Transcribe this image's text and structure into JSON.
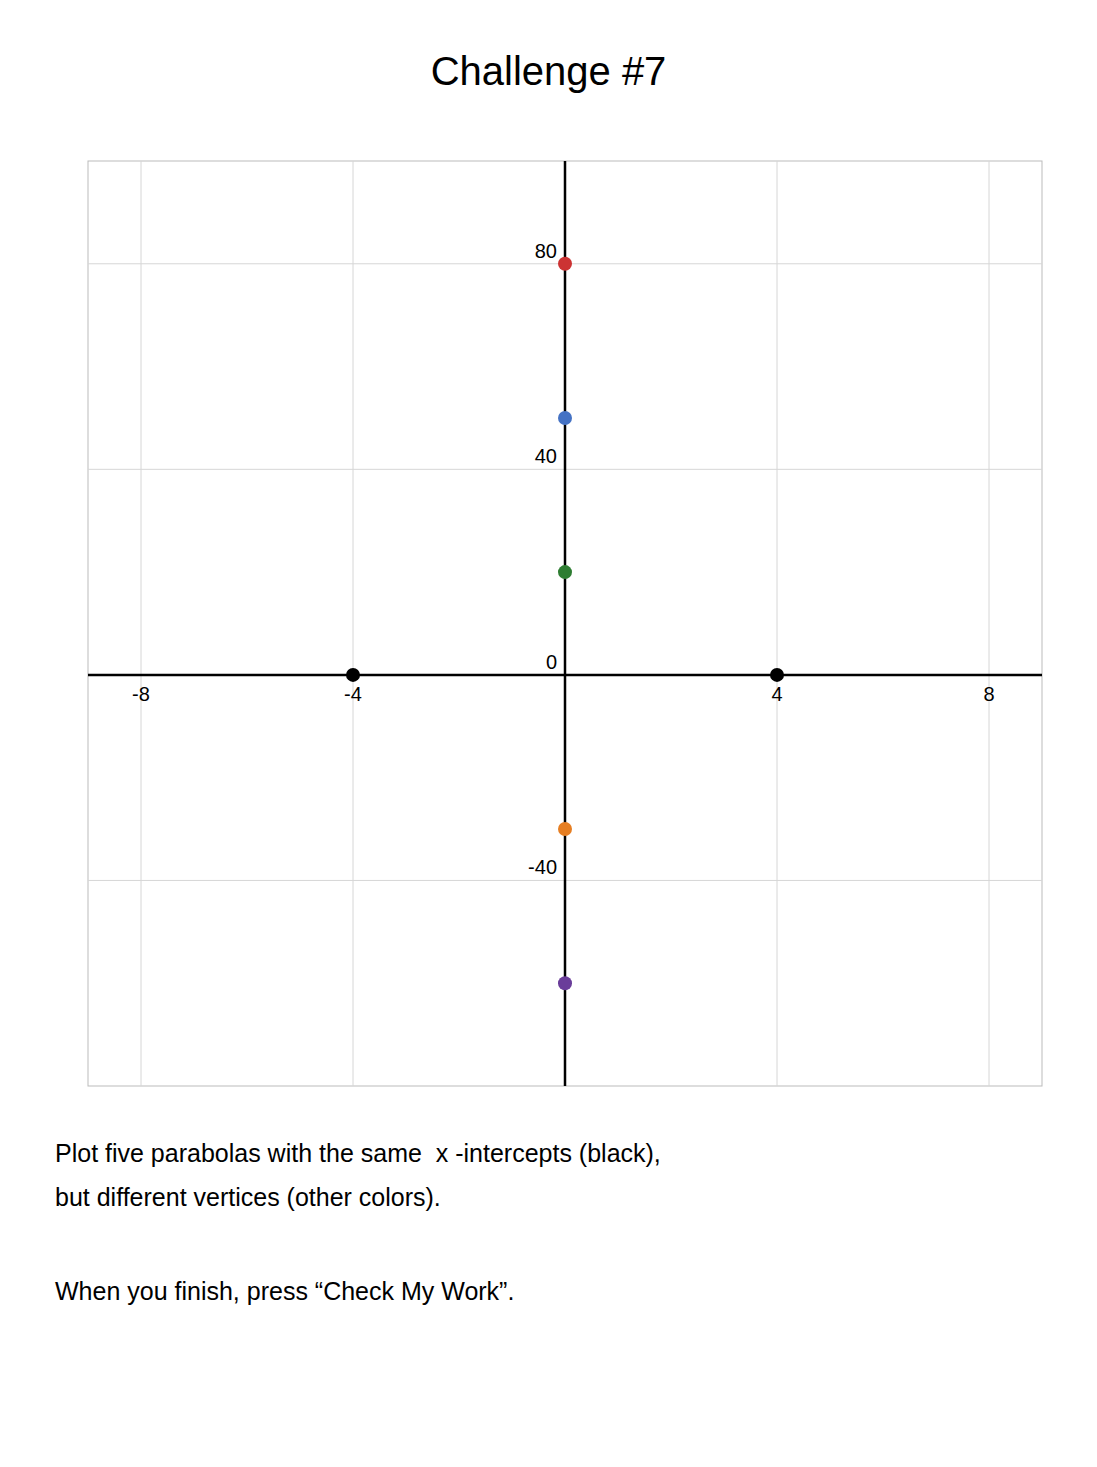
{
  "chart_data": {
    "type": "scatter",
    "title": "Challenge #7",
    "x": [
      -4,
      4,
      0,
      0,
      0,
      0,
      0
    ],
    "values": [
      0,
      0,
      80,
      50,
      20,
      -30,
      -60
    ],
    "colors": [
      "#000000",
      "#000000",
      "#cc3333",
      "#4472c4",
      "#2e7d32",
      "#e67e22",
      "#6a3d9a"
    ],
    "xlim": [
      -9,
      9
    ],
    "ylim": [
      -80,
      100
    ],
    "xticks": [
      -8,
      -4,
      4,
      8
    ],
    "yticks": [
      -40,
      0,
      40,
      80
    ],
    "grid": true,
    "annotations": [
      "Plot five parabolas with the same  x -intercepts (black),",
      "but different vertices (other colors).",
      "When you finish, press “Check My Work”."
    ]
  }
}
